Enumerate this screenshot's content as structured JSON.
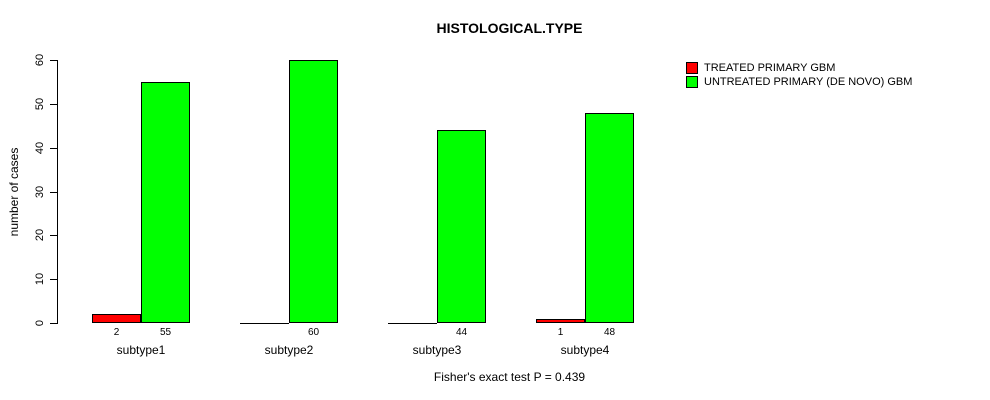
{
  "chart_data": {
    "type": "bar",
    "title": "HISTOLOGICAL.TYPE",
    "ylabel": "number of cases",
    "xlabel": "",
    "ylim": [
      0,
      60
    ],
    "yticks": [
      0,
      10,
      20,
      30,
      40,
      50,
      60
    ],
    "categories": [
      "subtype1",
      "subtype2",
      "subtype3",
      "subtype4"
    ],
    "series": [
      {
        "key": "treated",
        "name": "TREATED PRIMARY GBM",
        "color": "#FF0000",
        "values": [
          2,
          0,
          0,
          1
        ]
      },
      {
        "key": "untreated",
        "name": "UNTREATED PRIMARY (DE NOVO) GBM",
        "color": "#00FF00",
        "values": [
          55,
          60,
          44,
          48
        ]
      }
    ],
    "bar_value_labels": [
      [
        "2",
        "55"
      ],
      [
        "",
        "60"
      ],
      [
        "",
        "44"
      ],
      [
        "1",
        "48"
      ]
    ],
    "annotation": "Fisher's exact test P = 0.439",
    "legend_position": "top-right",
    "grid": false,
    "background": "#FFFFFF",
    "axis_color": "#000000"
  }
}
